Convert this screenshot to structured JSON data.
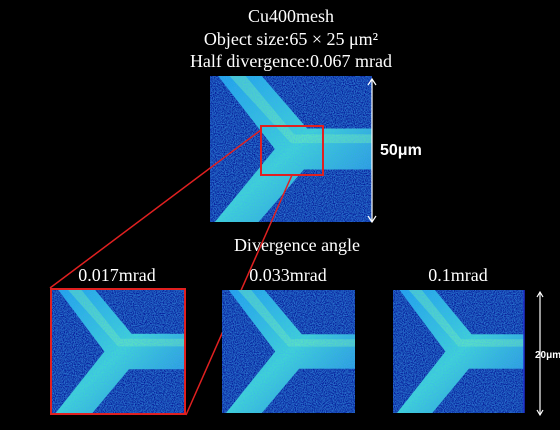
{
  "header": {
    "lines": [
      "Cu400mesh",
      "Object size:65 × 25 μm²",
      "Half divergence:0.067 mrad"
    ]
  },
  "top_image": {
    "scale_label": "50μm"
  },
  "section_label": "Divergence angle",
  "panels": [
    {
      "label": "0.017mrad"
    },
    {
      "label": "0.033mrad"
    },
    {
      "label": "0.1mrad"
    }
  ],
  "bottom_scale_label": "20μm"
}
